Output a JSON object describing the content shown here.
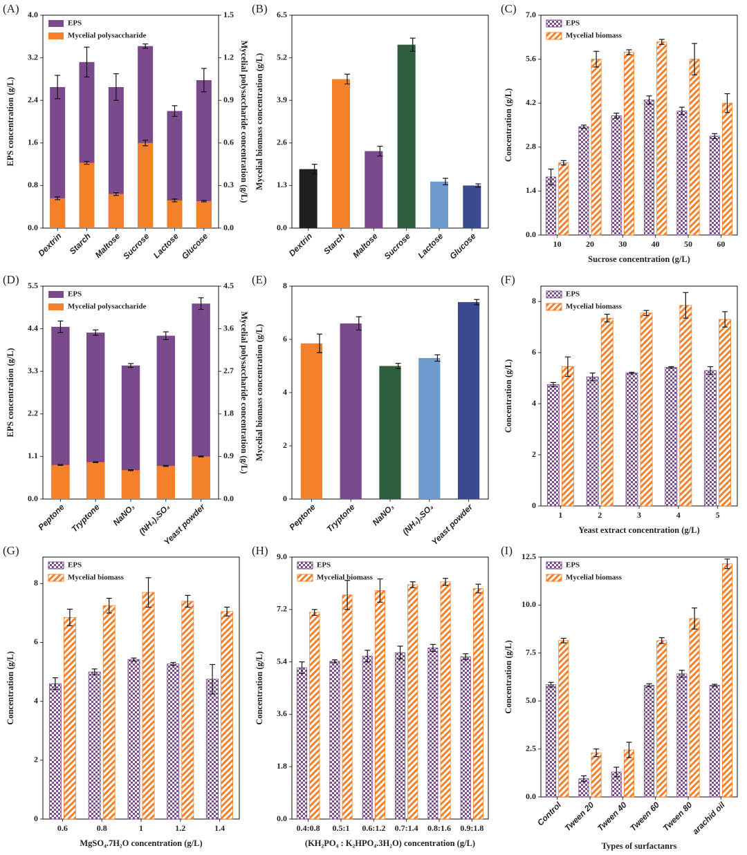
{
  "chart_data": [
    {
      "type": "bar",
      "panel": "(A)",
      "barmode": "overlay",
      "rotated_xticks": true,
      "categories": [
        "Dextrin",
        "Starch",
        "Maltose",
        "Sucrose",
        "Lactose",
        "Glucose"
      ],
      "ylabel": "EPS concentration (g/L)",
      "y2label": "Mycelial polysaccharide concentration (g/L)",
      "ylim": [
        0,
        4
      ],
      "yticks": [
        {
          "value": 0,
          "label": "0.0"
        },
        0.8,
        1.6,
        2.4,
        3.2,
        {
          "value": 4,
          "label": "4.0"
        }
      ],
      "y2lim": [
        0,
        1.5
      ],
      "y2ticks": [
        {
          "value": 0,
          "label": "0.0"
        },
        0.3,
        0.6,
        0.9,
        1.2,
        1.5
      ],
      "series": [
        {
          "name": "EPS",
          "color": "#7b4a8c",
          "values": [
            2.65,
            3.12,
            2.65,
            3.42,
            2.2,
            2.78
          ],
          "errors": [
            0.22,
            0.28,
            0.25,
            0.04,
            0.1,
            0.22
          ]
        },
        {
          "name": "Mycelial polysaccharide",
          "color": "#f5802a",
          "axis": "y2",
          "values": [
            0.21,
            0.46,
            0.24,
            0.6,
            0.195,
            0.19
          ],
          "errors": [
            0.01,
            0.01,
            0.01,
            0.02,
            0.01,
            0.005
          ]
        }
      ]
    },
    {
      "type": "bar",
      "panel": "(B)",
      "rotated_xticks": true,
      "categories": [
        "Dextrin",
        "Starch",
        "Maltose",
        "Sucrose",
        "Lactose",
        "Glucose"
      ],
      "ylabel": "Mycelial biomass concentration (g/L)",
      "ylim": [
        0,
        6.5
      ],
      "yticks": [
        {
          "value": 0,
          "label": "0.0"
        },
        1.3,
        2.6,
        3.9,
        5.2,
        6.5
      ],
      "values": [
        1.8,
        4.55,
        2.35,
        5.6,
        1.42,
        1.3
      ],
      "errors": [
        0.15,
        0.15,
        0.15,
        0.2,
        0.1,
        0.05
      ],
      "colors": [
        "#231f20",
        "#f5802a",
        "#7b4a8c",
        "#2e5e3e",
        "#6f9ccf",
        "#3a4a8e"
      ]
    },
    {
      "type": "bar",
      "panel": "(C)",
      "barmode": "group",
      "categories": [
        "10",
        "20",
        "30",
        "40",
        "50",
        "60"
      ],
      "xlabel": "Sucrose concentration (g/L)",
      "ylabel": "Concentration (g/L)",
      "ylim": [
        0,
        7
      ],
      "yticks": [
        {
          "value": 0,
          "label": "0.0"
        },
        1.4,
        2.8,
        4.2,
        5.6,
        {
          "value": 7,
          "label": "7.0"
        }
      ],
      "series": [
        {
          "name": "EPS",
          "color": "#7b4a8c",
          "pattern": "checker",
          "values": [
            1.85,
            3.45,
            3.8,
            4.3,
            3.95,
            3.15
          ],
          "errors": [
            0.25,
            0.05,
            0.08,
            0.13,
            0.12,
            0.08
          ]
        },
        {
          "name": "Mycelial biomass",
          "color": "#f5802a",
          "pattern": "hatch",
          "values": [
            2.3,
            5.6,
            5.82,
            6.15,
            5.6,
            4.2
          ],
          "errors": [
            0.07,
            0.25,
            0.08,
            0.08,
            0.5,
            0.3
          ]
        }
      ]
    },
    {
      "type": "bar",
      "panel": "(D)",
      "barmode": "overlay",
      "rotated_xticks": true,
      "categories": [
        "Peptone",
        "Tryptone",
        "NaNO₃",
        "(NH₄)₂SO₄",
        "Yeast powder"
      ],
      "ylabel": "EPS concentration (g/L)",
      "y2label": "Mycelial polysaccharide concentration (g/L)",
      "ylim": [
        0,
        5.5
      ],
      "yticks": [
        {
          "value": 0,
          "label": "0.0"
        },
        1.1,
        2.2,
        3.3,
        4.4,
        5.5
      ],
      "y2lim": [
        0,
        4.5
      ],
      "y2ticks": [
        {
          "value": 0,
          "label": "0.0"
        },
        0.9,
        1.8,
        2.7,
        3.6,
        4.5
      ],
      "series": [
        {
          "name": "EPS",
          "color": "#7b4a8c",
          "values": [
            4.45,
            4.3,
            3.45,
            4.22,
            5.05
          ],
          "errors": [
            0.15,
            0.07,
            0.05,
            0.1,
            0.15
          ]
        },
        {
          "name": "Mycelial polysaccharide",
          "color": "#f5802a",
          "axis": "y2",
          "values": [
            0.72,
            0.78,
            0.61,
            0.7,
            0.9
          ],
          "errors": [
            0.01,
            0.01,
            0.01,
            0.01,
            0.01
          ]
        }
      ]
    },
    {
      "type": "bar",
      "panel": "(E)",
      "rotated_xticks": true,
      "categories": [
        "Peptone",
        "Tryptone",
        "NaNO₃",
        "(NH₄)₂SO₄",
        "Yeast powder"
      ],
      "ylabel": "Mycelial biomass concentration (g/L)",
      "ylim": [
        0,
        8
      ],
      "yticks": [
        0,
        2,
        4,
        6,
        8
      ],
      "values": [
        5.85,
        6.6,
        5.0,
        5.3,
        7.4
      ],
      "errors": [
        0.35,
        0.25,
        0.1,
        0.12,
        0.1
      ],
      "colors": [
        "#f5802a",
        "#7b4a8c",
        "#2e5e3e",
        "#6f9ccf",
        "#3a4a8e"
      ]
    },
    {
      "type": "bar",
      "panel": "(F)",
      "barmode": "group",
      "categories": [
        "1",
        "2",
        "3",
        "4",
        "5"
      ],
      "xlabel": "Yeast extract concentration (g/L)",
      "ylabel": "Concentration (g/L)",
      "ylim": [
        0,
        8.6
      ],
      "yticks": [
        0,
        2,
        4,
        6,
        8
      ],
      "series": [
        {
          "name": "EPS",
          "color": "#7b4a8c",
          "pattern": "checker",
          "values": [
            4.75,
            5.05,
            5.2,
            5.42,
            5.3
          ],
          "errors": [
            0.08,
            0.15,
            0.03,
            0.03,
            0.15
          ]
        },
        {
          "name": "Mycelial biomass",
          "color": "#f5802a",
          "pattern": "hatch",
          "values": [
            5.45,
            7.35,
            7.55,
            7.85,
            7.3
          ],
          "errors": [
            0.38,
            0.15,
            0.1,
            0.5,
            0.3
          ]
        }
      ]
    },
    {
      "type": "bar",
      "panel": "(G)",
      "barmode": "group",
      "categories": [
        "0.6",
        "0.8",
        "1",
        "1.2",
        "1.4"
      ],
      "xlabel": "MgSO₄.7H₂O concentration (g/L)",
      "ylabel": "Concentration (g/L)",
      "ylim": [
        0,
        8.9
      ],
      "yticks": [
        0,
        2,
        4,
        6,
        8
      ],
      "series": [
        {
          "name": "EPS",
          "color": "#7b4a8c",
          "pattern": "checker",
          "values": [
            4.6,
            5.0,
            5.42,
            5.27,
            4.75
          ],
          "errors": [
            0.2,
            0.1,
            0.05,
            0.05,
            0.5
          ]
        },
        {
          "name": "Mycelial biomass",
          "color": "#f5802a",
          "pattern": "hatch",
          "values": [
            6.85,
            7.25,
            7.7,
            7.4,
            7.05
          ],
          "errors": [
            0.28,
            0.25,
            0.5,
            0.2,
            0.15
          ]
        }
      ]
    },
    {
      "type": "bar",
      "panel": "(H)",
      "barmode": "group",
      "categories": [
        "0.4:0.8",
        "0.5:1",
        "0.6:1.2",
        "0.7:1.4",
        "0.8:1.6",
        "0.9:1.8"
      ],
      "xlabel": "(KH₂PO₄ : K₂HPO₄.3H₂O) concentration (g/L)",
      "ylabel": "Concentration (g/L)",
      "ylim": [
        0,
        9
      ],
      "yticks": [
        {
          "value": 0,
          "label": "0.0"
        },
        1.8,
        3.6,
        5.4,
        7.2,
        {
          "value": 9,
          "label": "9.0"
        }
      ],
      "series": [
        {
          "name": "EPS",
          "color": "#7b4a8c",
          "pattern": "checker",
          "values": [
            5.2,
            5.42,
            5.6,
            5.72,
            5.88,
            5.58
          ],
          "errors": [
            0.2,
            0.05,
            0.2,
            0.22,
            0.12,
            0.1
          ]
        },
        {
          "name": "Mycelial biomass",
          "color": "#f5802a",
          "pattern": "hatch",
          "values": [
            7.1,
            7.7,
            7.85,
            8.05,
            8.15,
            7.92
          ],
          "errors": [
            0.1,
            0.5,
            0.4,
            0.1,
            0.12,
            0.15
          ]
        }
      ]
    },
    {
      "type": "bar",
      "panel": "(I)",
      "barmode": "group",
      "rotated_xticks": true,
      "categories": [
        "Control",
        "Tween 20",
        "Tween 40",
        "Tween 60",
        "Tween 80",
        "arachid oil"
      ],
      "xlabel": "Types of surfactanrs",
      "ylabel": "Concentration (g/L)",
      "ylim": [
        0,
        12.5
      ],
      "yticks": [
        {
          "value": 0,
          "label": "0.0"
        },
        2.5,
        {
          "value": 5,
          "label": "5.0"
        },
        7.5,
        {
          "value": 10,
          "label": "10.0"
        },
        12.5
      ],
      "series": [
        {
          "name": "EPS",
          "color": "#7b4a8c",
          "pattern": "checker",
          "values": [
            5.85,
            0.95,
            1.3,
            5.82,
            6.42,
            5.82
          ],
          "errors": [
            0.12,
            0.15,
            0.25,
            0.08,
            0.18,
            0.05
          ]
        },
        {
          "name": "Mycelial biomass",
          "color": "#f5802a",
          "pattern": "hatch",
          "values": [
            8.15,
            2.3,
            2.45,
            8.15,
            9.3,
            12.15
          ],
          "errors": [
            0.12,
            0.2,
            0.4,
            0.15,
            0.55,
            0.25
          ]
        }
      ]
    }
  ]
}
